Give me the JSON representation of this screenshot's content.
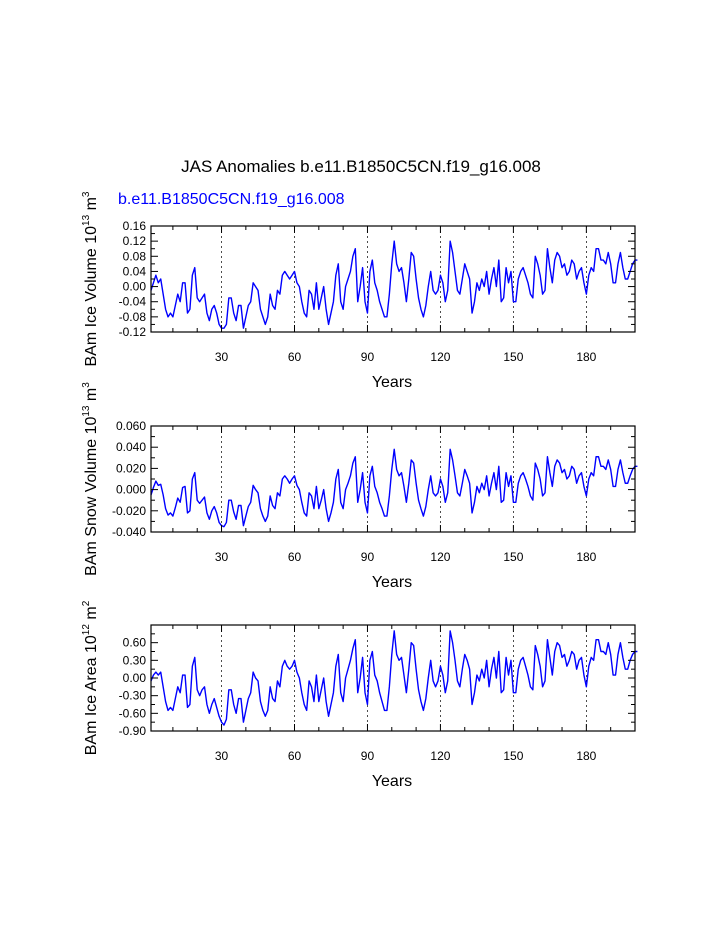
{
  "colors": {
    "series": "#0000ff",
    "subtitle": "#0000ff",
    "frame": "#000000",
    "gridline": "#000000"
  },
  "figure": {
    "title": "JAS Anomalies b.e11.B1850C5CN.f19_g16.008",
    "subtitle": "b.e11.B1850C5CN.f19_g16.008"
  },
  "chart_data": [
    {
      "type": "line",
      "name": "ice-volume",
      "ylabel_main": "BAm Ice Volume 10",
      "ylabel_exp1": "13",
      "ylabel_unit": " m",
      "ylabel_exp2": "3",
      "xlabel": "Years",
      "xlim": [
        1,
        200
      ],
      "ylim": [
        -0.12,
        0.16
      ],
      "xticks": [
        30,
        60,
        90,
        120,
        150,
        180
      ],
      "xtick_labels": [
        "30",
        "60",
        "90",
        "120",
        "150",
        "180"
      ],
      "yticks": [
        -0.12,
        -0.08,
        -0.04,
        0.0,
        0.04,
        0.08,
        0.12,
        0.16
      ],
      "ytick_labels": [
        "-0.12",
        "-0.08",
        "-0.04",
        "0.00",
        "0.04",
        "0.08",
        "0.12",
        "0.16"
      ],
      "yminor": [
        -0.1,
        -0.06,
        -0.02,
        0.02,
        0.06,
        0.1,
        0.14
      ],
      "grid_x": "dashed vertical lines at major x ticks",
      "series": [
        {
          "name": "b.e11.B1850C5CN.f19_g16.008",
          "x_start": 1,
          "values": [
            -0.01,
            0.01,
            0.03,
            0.01,
            0.02,
            -0.02,
            -0.06,
            -0.08,
            -0.07,
            -0.08,
            -0.05,
            -0.02,
            -0.04,
            0.01,
            0.01,
            -0.07,
            -0.06,
            0.03,
            0.05,
            -0.03,
            -0.04,
            -0.03,
            -0.02,
            -0.07,
            -0.09,
            -0.06,
            -0.05,
            -0.07,
            -0.1,
            -0.11,
            -0.11,
            -0.1,
            -0.03,
            -0.03,
            -0.07,
            -0.09,
            -0.05,
            -0.05,
            -0.11,
            -0.08,
            -0.05,
            -0.04,
            0.01,
            0.0,
            -0.01,
            -0.06,
            -0.08,
            -0.1,
            -0.08,
            -0.02,
            -0.05,
            -0.06,
            -0.01,
            -0.02,
            0.03,
            0.04,
            0.03,
            0.02,
            0.03,
            0.04,
            0.01,
            0.0,
            -0.04,
            -0.07,
            -0.08,
            -0.01,
            -0.02,
            -0.06,
            0.01,
            -0.06,
            -0.03,
            0.0,
            -0.06,
            -0.1,
            -0.07,
            -0.04,
            0.03,
            0.06,
            -0.04,
            -0.06,
            0.0,
            0.02,
            0.04,
            0.08,
            0.1,
            -0.04,
            0.0,
            0.05,
            -0.04,
            -0.07,
            0.04,
            0.07,
            0.01,
            -0.01,
            -0.04,
            -0.06,
            -0.08,
            -0.08,
            -0.02,
            0.06,
            0.12,
            0.06,
            0.04,
            0.05,
            0.01,
            -0.04,
            0.02,
            0.09,
            0.08,
            0.02,
            -0.03,
            -0.06,
            -0.08,
            -0.05,
            0.0,
            0.04,
            -0.01,
            -0.02,
            -0.01,
            0.03,
            0.01,
            -0.04,
            -0.01,
            0.12,
            0.09,
            0.04,
            -0.01,
            -0.02,
            0.02,
            0.06,
            0.04,
            0.02,
            -0.07,
            -0.04,
            0.01,
            -0.01,
            0.02,
            0.0,
            0.04,
            -0.02,
            0.02,
            0.05,
            0.0,
            0.07,
            -0.04,
            -0.03,
            0.05,
            0.01,
            0.04,
            -0.04,
            -0.04,
            0.02,
            0.04,
            0.05,
            0.03,
            0.01,
            -0.02,
            -0.03,
            0.08,
            0.06,
            0.03,
            -0.02,
            -0.01,
            0.1,
            0.05,
            0.01,
            0.07,
            0.09,
            0.08,
            0.05,
            0.06,
            0.03,
            0.04,
            0.07,
            0.06,
            0.02,
            0.04,
            0.05,
            0.01,
            -0.02,
            0.03,
            0.05,
            0.04,
            0.1,
            0.1,
            0.07,
            0.07,
            0.06,
            0.09,
            0.06,
            0.01,
            0.01,
            0.06,
            0.09,
            0.05,
            0.02,
            0.02,
            0.04,
            0.06,
            0.07,
            0.07
          ]
        }
      ]
    },
    {
      "type": "line",
      "name": "snow-volume",
      "ylabel_main": "BAm Snow Volume 10",
      "ylabel_exp1": "13",
      "ylabel_unit": " m",
      "ylabel_exp2": "3",
      "xlabel": "Years",
      "xlim": [
        1,
        200
      ],
      "ylim": [
        -0.04,
        0.06
      ],
      "xticks": [
        30,
        60,
        90,
        120,
        150,
        180
      ],
      "xtick_labels": [
        "30",
        "60",
        "90",
        "120",
        "150",
        "180"
      ],
      "yticks": [
        -0.04,
        -0.02,
        0.0,
        0.02,
        0.04,
        0.06
      ],
      "ytick_labels": [
        "-0.040",
        "-0.020",
        "0.000",
        "0.020",
        "0.040",
        "0.060"
      ],
      "yminor": [
        -0.03,
        -0.01,
        0.01,
        0.03,
        0.05
      ],
      "grid_x": "dashed vertical lines at major x ticks",
      "series": [
        {
          "name": "b.e11.B1850C5CN.f19_g16.008",
          "x_start": 1,
          "values": [
            -0.005,
            0.002,
            0.008,
            0.004,
            0.005,
            -0.005,
            -0.018,
            -0.024,
            -0.022,
            -0.025,
            -0.017,
            -0.008,
            -0.012,
            0.002,
            0.003,
            -0.022,
            -0.02,
            0.01,
            0.016,
            -0.01,
            -0.013,
            -0.01,
            -0.007,
            -0.022,
            -0.028,
            -0.02,
            -0.016,
            -0.022,
            -0.031,
            -0.034,
            -0.035,
            -0.031,
            -0.01,
            -0.01,
            -0.021,
            -0.028,
            -0.015,
            -0.015,
            -0.034,
            -0.025,
            -0.016,
            -0.012,
            0.004,
            0.0,
            -0.003,
            -0.018,
            -0.025,
            -0.03,
            -0.025,
            -0.006,
            -0.015,
            -0.018,
            -0.003,
            -0.006,
            0.01,
            0.013,
            0.01,
            0.006,
            0.01,
            0.013,
            0.004,
            0.0,
            -0.012,
            -0.022,
            -0.025,
            -0.003,
            -0.006,
            -0.018,
            0.003,
            -0.018,
            -0.01,
            0.0,
            -0.018,
            -0.03,
            -0.022,
            -0.012,
            0.01,
            0.019,
            -0.012,
            -0.018,
            0.0,
            0.006,
            0.013,
            0.025,
            0.031,
            -0.012,
            0.0,
            0.016,
            -0.012,
            -0.022,
            0.013,
            0.022,
            0.003,
            -0.003,
            -0.012,
            -0.018,
            -0.025,
            -0.025,
            -0.006,
            0.019,
            0.038,
            0.019,
            0.013,
            0.016,
            0.003,
            -0.012,
            0.006,
            0.028,
            0.025,
            0.006,
            -0.01,
            -0.018,
            -0.025,
            -0.016,
            0.0,
            0.013,
            -0.003,
            -0.006,
            -0.003,
            0.01,
            0.003,
            -0.012,
            -0.003,
            0.038,
            0.028,
            0.013,
            -0.003,
            -0.006,
            0.006,
            0.019,
            0.013,
            0.006,
            -0.022,
            -0.012,
            0.003,
            -0.003,
            0.006,
            0.0,
            0.013,
            -0.006,
            0.006,
            0.016,
            0.0,
            0.022,
            -0.012,
            -0.01,
            0.016,
            0.003,
            0.013,
            -0.012,
            -0.012,
            0.006,
            0.013,
            0.016,
            0.01,
            0.003,
            -0.006,
            -0.01,
            0.025,
            0.019,
            0.01,
            -0.006,
            -0.003,
            0.031,
            0.016,
            0.003,
            0.022,
            0.028,
            0.025,
            0.016,
            0.019,
            0.01,
            0.013,
            0.022,
            0.019,
            0.006,
            0.013,
            0.016,
            0.003,
            -0.006,
            0.01,
            0.016,
            0.013,
            0.031,
            0.031,
            0.022,
            0.022,
            0.019,
            0.028,
            0.019,
            0.003,
            0.003,
            0.019,
            0.028,
            0.016,
            0.006,
            0.006,
            0.013,
            0.019,
            0.022,
            0.022
          ]
        }
      ]
    },
    {
      "type": "line",
      "name": "ice-area",
      "ylabel_main": "BAm Ice Area 10",
      "ylabel_exp1": "12",
      "ylabel_unit": " m",
      "ylabel_exp2": "2",
      "xlabel": "Years",
      "xlim": [
        1,
        200
      ],
      "ylim": [
        -0.9,
        0.9
      ],
      "xticks": [
        30,
        60,
        90,
        120,
        150,
        180
      ],
      "xtick_labels": [
        "30",
        "60",
        "90",
        "120",
        "150",
        "180"
      ],
      "yticks": [
        -0.9,
        -0.6,
        -0.3,
        0.0,
        0.3,
        0.6
      ],
      "ytick_labels": [
        "-0.90",
        "-0.60",
        "-0.30",
        "0.00",
        "0.30",
        "0.60"
      ],
      "yminor": [
        -0.75,
        -0.45,
        -0.15,
        0.15,
        0.45,
        0.75,
        0.9
      ],
      "grid_x": "dashed vertical lines at major x ticks",
      "series": [
        {
          "name": "b.e11.B1850C5CN.f19_g16.008",
          "x_start": 1,
          "values": [
            -0.05,
            0.05,
            0.1,
            0.05,
            0.1,
            -0.15,
            -0.4,
            -0.55,
            -0.5,
            -0.55,
            -0.35,
            -0.15,
            -0.25,
            0.05,
            0.05,
            -0.5,
            -0.45,
            0.2,
            0.35,
            -0.2,
            -0.3,
            -0.2,
            -0.15,
            -0.45,
            -0.6,
            -0.45,
            -0.35,
            -0.5,
            -0.65,
            -0.75,
            -0.8,
            -0.7,
            -0.2,
            -0.2,
            -0.45,
            -0.6,
            -0.35,
            -0.35,
            -0.75,
            -0.55,
            -0.35,
            -0.25,
            0.1,
            0.0,
            -0.05,
            -0.4,
            -0.55,
            -0.65,
            -0.55,
            -0.15,
            -0.35,
            -0.4,
            -0.05,
            -0.15,
            0.2,
            0.3,
            0.2,
            0.15,
            0.2,
            0.3,
            0.1,
            0.0,
            -0.25,
            -0.45,
            -0.55,
            -0.05,
            -0.15,
            -0.4,
            0.05,
            -0.4,
            -0.2,
            0.0,
            -0.4,
            -0.65,
            -0.45,
            -0.25,
            0.2,
            0.4,
            -0.25,
            -0.4,
            0.0,
            0.15,
            0.3,
            0.5,
            0.65,
            -0.25,
            0.0,
            0.35,
            -0.25,
            -0.45,
            0.3,
            0.45,
            0.05,
            -0.05,
            -0.25,
            -0.4,
            -0.55,
            -0.55,
            -0.15,
            0.4,
            0.8,
            0.4,
            0.3,
            0.35,
            0.05,
            -0.25,
            0.15,
            0.6,
            0.55,
            0.15,
            -0.2,
            -0.4,
            -0.55,
            -0.35,
            0.0,
            0.3,
            -0.05,
            -0.15,
            -0.05,
            0.2,
            0.05,
            -0.25,
            -0.05,
            0.8,
            0.6,
            0.3,
            -0.05,
            -0.15,
            0.15,
            0.4,
            0.3,
            0.15,
            -0.45,
            -0.25,
            0.05,
            -0.05,
            0.15,
            0.0,
            0.3,
            -0.15,
            0.15,
            0.35,
            0.0,
            0.45,
            -0.25,
            -0.2,
            0.35,
            0.05,
            0.3,
            -0.25,
            -0.25,
            0.15,
            0.3,
            0.35,
            0.2,
            0.05,
            -0.15,
            -0.2,
            0.55,
            0.4,
            0.2,
            -0.15,
            -0.05,
            0.65,
            0.35,
            0.05,
            0.45,
            0.6,
            0.55,
            0.35,
            0.4,
            0.2,
            0.3,
            0.45,
            0.4,
            0.15,
            0.3,
            0.35,
            0.05,
            -0.15,
            0.2,
            0.35,
            0.3,
            0.65,
            0.65,
            0.45,
            0.45,
            0.4,
            0.6,
            0.4,
            0.05,
            0.05,
            0.4,
            0.6,
            0.35,
            0.15,
            0.15,
            0.3,
            0.4,
            0.45,
            0.45
          ]
        }
      ]
    }
  ]
}
